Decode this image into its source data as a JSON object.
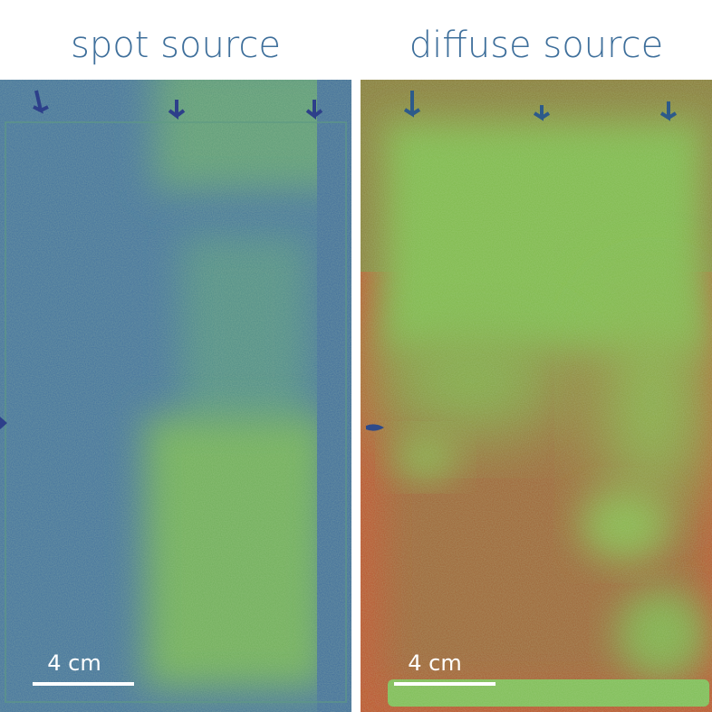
{
  "panels": [
    {
      "title": "spot source",
      "scale_label": "4 cm"
    },
    {
      "title": "diffuse source",
      "scale_label": "4 cm"
    }
  ]
}
